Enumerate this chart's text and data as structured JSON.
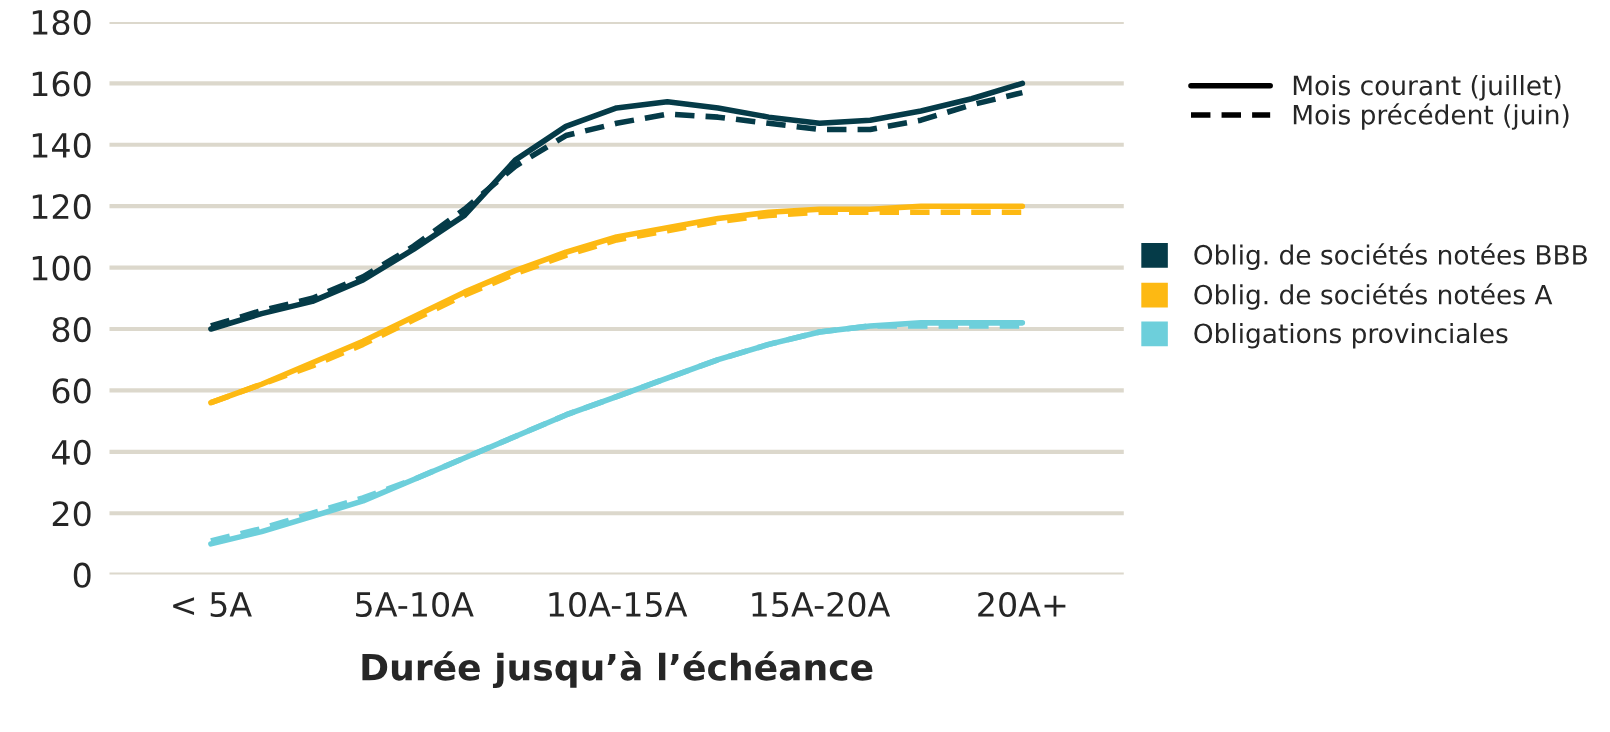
{
  "chart_data": {
    "type": "line",
    "xlabel": "Durée jusqu’à l’échéance",
    "categories": [
      "< 5A",
      null,
      null,
      null,
      "5A-10A",
      null,
      null,
      null,
      "10A-15A",
      null,
      null,
      null,
      "15A-20A",
      null,
      null,
      null,
      "20A+"
    ],
    "ylim": [
      0,
      180
    ],
    "yticks": [
      0,
      20,
      40,
      60,
      80,
      100,
      120,
      140,
      160,
      180
    ],
    "grid": "y",
    "legend": "right",
    "annotations": [
      "Mois courant (juillet)",
      "Mois précédent (juin)"
    ],
    "series": [
      {
        "name": "Oblig. de sociétés notées BBB",
        "color": "#053b48",
        "line_style": "solid",
        "values": [
          80,
          85,
          89,
          96,
          106,
          117,
          135,
          146,
          152,
          154,
          152,
          149,
          147,
          148,
          151,
          155,
          160
        ]
      },
      {
        "color": "#053b48",
        "line_style": "dashed",
        "values": [
          81,
          86,
          90,
          97,
          107,
          119,
          133,
          143,
          147,
          150,
          149,
          147,
          145,
          145,
          148,
          153,
          157
        ]
      },
      {
        "name": "Oblig. de sociétés notées A",
        "color": "#fdb913",
        "line_style": "solid",
        "values": [
          56,
          62,
          69,
          76,
          84,
          92,
          99,
          105,
          110,
          113,
          116,
          118,
          119,
          119,
          120,
          120,
          120
        ]
      },
      {
        "color": "#fdb913",
        "line_style": "dashed",
        "values": [
          56,
          62,
          68,
          75,
          83,
          91,
          98,
          104,
          109,
          112,
          115,
          117,
          118,
          118,
          118,
          118,
          118
        ]
      },
      {
        "name": "Obligations provinciales",
        "color": "#6dcfdb",
        "line_style": "solid",
        "values": [
          10,
          14,
          19,
          24,
          31,
          38,
          45,
          52,
          58,
          64,
          70,
          75,
          79,
          81,
          82,
          82,
          82
        ]
      },
      {
        "color": "#6dcfdb",
        "line_style": "dashed",
        "values": [
          11,
          15,
          20,
          25,
          31,
          38,
          45,
          52,
          58,
          64,
          70,
          75,
          79,
          81,
          81,
          81,
          81
        ]
      }
    ]
  }
}
